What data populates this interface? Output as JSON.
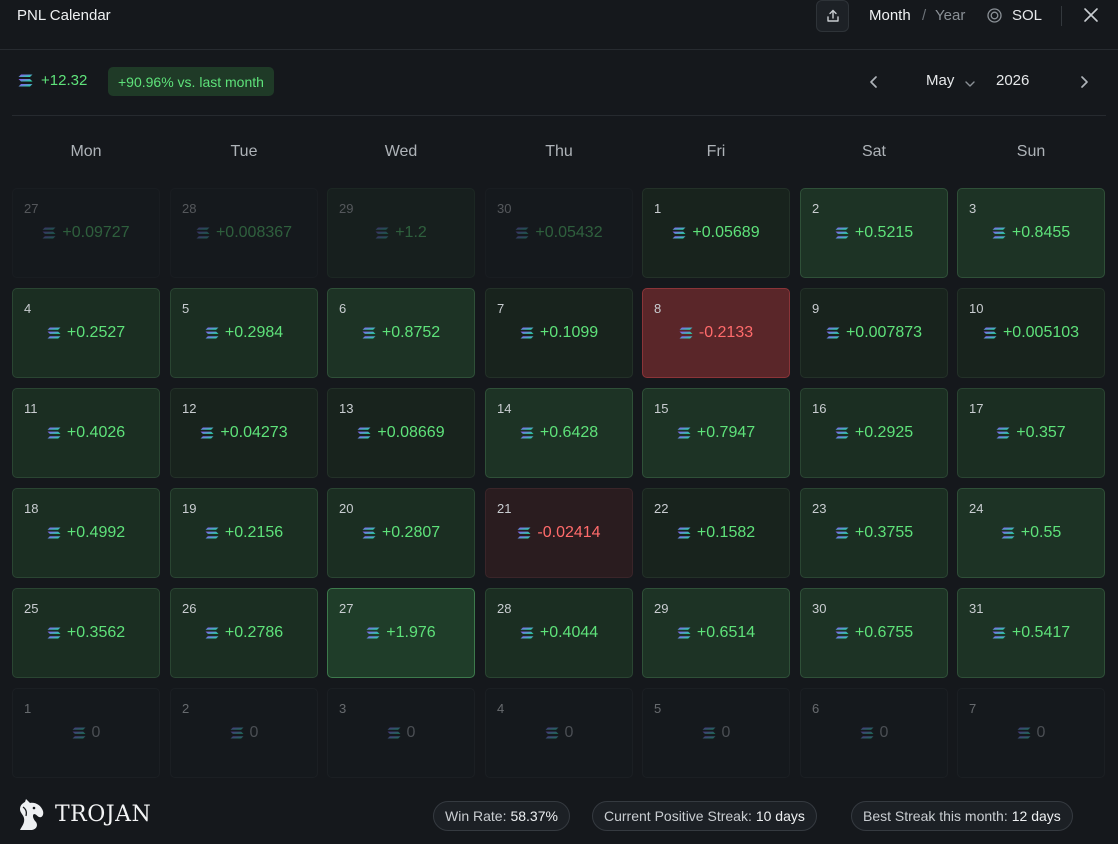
{
  "app": {
    "title": "PNL Calendar"
  },
  "header": {
    "view_month": "Month",
    "view_sep": "/",
    "view_year": "Year",
    "currency": "SOL"
  },
  "summary": {
    "value": "+12.32",
    "badge": "+90.96% vs. last month",
    "month": "May",
    "year": "2026"
  },
  "weekdays": [
    "Mon",
    "Tue",
    "Wed",
    "Thu",
    "Fri",
    "Sat",
    "Sun"
  ],
  "days": [
    {
      "day": "27",
      "value": "+0.09727",
      "state": "out"
    },
    {
      "day": "28",
      "value": "+0.008367",
      "state": "out"
    },
    {
      "day": "29",
      "value": "+1.2",
      "state": "out-g"
    },
    {
      "day": "30",
      "value": "+0.05432",
      "state": "out"
    },
    {
      "day": "1",
      "value": "+0.05689",
      "state": "g1"
    },
    {
      "day": "2",
      "value": "+0.5215",
      "state": "g3"
    },
    {
      "day": "3",
      "value": "+0.8455",
      "state": "g3"
    },
    {
      "day": "4",
      "value": "+0.2527",
      "state": "g2"
    },
    {
      "day": "5",
      "value": "+0.2984",
      "state": "g2"
    },
    {
      "day": "6",
      "value": "+0.8752",
      "state": "g3"
    },
    {
      "day": "7",
      "value": "+0.1099",
      "state": "g1"
    },
    {
      "day": "8",
      "value": "-0.2133",
      "state": "red"
    },
    {
      "day": "9",
      "value": "+0.007873",
      "state": "g1"
    },
    {
      "day": "10",
      "value": "+0.005103",
      "state": "g1"
    },
    {
      "day": "11",
      "value": "+0.4026",
      "state": "g2"
    },
    {
      "day": "12",
      "value": "+0.04273",
      "state": "g1"
    },
    {
      "day": "13",
      "value": "+0.08669",
      "state": "g1"
    },
    {
      "day": "14",
      "value": "+0.6428",
      "state": "g3"
    },
    {
      "day": "15",
      "value": "+0.7947",
      "state": "g3"
    },
    {
      "day": "16",
      "value": "+0.2925",
      "state": "g2"
    },
    {
      "day": "17",
      "value": "+0.357",
      "state": "g2"
    },
    {
      "day": "18",
      "value": "+0.4992",
      "state": "g2"
    },
    {
      "day": "19",
      "value": "+0.2156",
      "state": "g2"
    },
    {
      "day": "20",
      "value": "+0.2807",
      "state": "g2"
    },
    {
      "day": "21",
      "value": "-0.02414",
      "state": "red-lite"
    },
    {
      "day": "22",
      "value": "+0.1582",
      "state": "g1"
    },
    {
      "day": "23",
      "value": "+0.3755",
      "state": "g2"
    },
    {
      "day": "24",
      "value": "+0.55",
      "state": "g3"
    },
    {
      "day": "25",
      "value": "+0.3562",
      "state": "g2"
    },
    {
      "day": "26",
      "value": "+0.2786",
      "state": "g2"
    },
    {
      "day": "27",
      "value": "+1.976",
      "state": "g4"
    },
    {
      "day": "28",
      "value": "+0.4044",
      "state": "g2"
    },
    {
      "day": "29",
      "value": "+0.6514",
      "state": "g3"
    },
    {
      "day": "30",
      "value": "+0.6755",
      "state": "g3"
    },
    {
      "day": "31",
      "value": "+0.5417",
      "state": "g3"
    },
    {
      "day": "1",
      "value": "0",
      "state": "future"
    },
    {
      "day": "2",
      "value": "0",
      "state": "future"
    },
    {
      "day": "3",
      "value": "0",
      "state": "future"
    },
    {
      "day": "4",
      "value": "0",
      "state": "future"
    },
    {
      "day": "5",
      "value": "0",
      "state": "future"
    },
    {
      "day": "6",
      "value": "0",
      "state": "future"
    },
    {
      "day": "7",
      "value": "0",
      "state": "future"
    }
  ],
  "footer": {
    "brand": "TROJAN",
    "win_rate_label": "Win Rate:",
    "win_rate_value": "58.37%",
    "streak_label": "Current Positive Streak:",
    "streak_value": "10 days",
    "best_label": "Best Streak this month:",
    "best_value": "12 days"
  }
}
